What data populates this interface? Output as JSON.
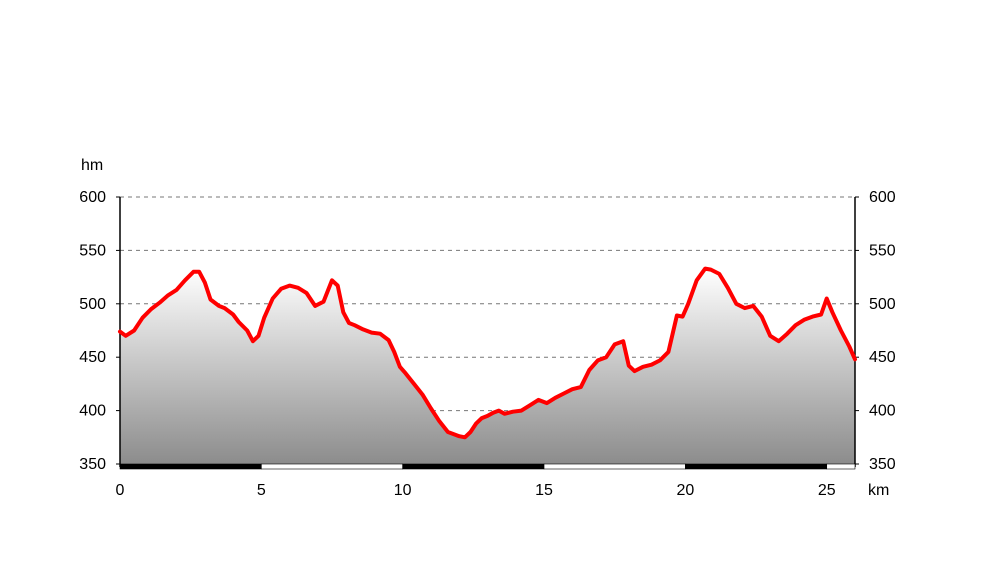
{
  "chart_data": {
    "type": "area",
    "title": "",
    "y_unit": "hm",
    "x_unit": "km",
    "xlim": [
      0,
      26
    ],
    "ylim": [
      350,
      600
    ],
    "x_ticks": [
      "0",
      "5",
      "10",
      "15",
      "20",
      "25"
    ],
    "y_ticks": [
      "350",
      "400",
      "450",
      "500",
      "550",
      "600"
    ],
    "grid": true,
    "line_color": "#ff0000",
    "fill_gradient": [
      "#ffffff",
      "#8c8c8c"
    ],
    "series": [
      {
        "x": [
          0,
          0.2,
          0.5,
          0.8,
          1.1,
          1.4,
          1.7,
          2.0,
          2.3,
          2.6,
          2.8,
          3.0,
          3.2,
          3.5,
          3.7,
          4.0,
          4.2,
          4.5,
          4.7,
          4.9,
          5.1,
          5.4,
          5.7,
          6.0,
          6.3,
          6.6,
          6.9,
          7.2,
          7.5,
          7.7,
          7.9,
          8.1,
          8.3,
          8.6,
          8.9,
          9.2,
          9.5,
          9.7,
          9.9,
          10.1,
          10.4,
          10.7,
          11.0,
          11.3,
          11.6,
          11.8,
          12.0,
          12.2,
          12.4,
          12.6,
          12.8,
          13.0,
          13.2,
          13.4,
          13.6,
          13.9,
          14.2,
          14.5,
          14.8,
          15.1,
          15.4,
          15.7,
          16.0,
          16.3,
          16.6,
          16.9,
          17.2,
          17.5,
          17.8,
          18.0,
          18.2,
          18.5,
          18.8,
          19.1,
          19.4,
          19.7,
          19.9,
          20.1,
          20.4,
          20.7,
          20.9,
          21.2,
          21.5,
          21.8,
          22.1,
          22.4,
          22.7,
          23.0,
          23.3,
          23.6,
          23.9,
          24.2,
          24.5,
          24.8,
          25.0,
          25.2,
          25.5,
          25.8,
          26.0
        ],
        "values": [
          474,
          470,
          475,
          487,
          495,
          501,
          508,
          513,
          522,
          530,
          530,
          520,
          504,
          498,
          496,
          490,
          483,
          475,
          465,
          470,
          487,
          505,
          514,
          517,
          515,
          510,
          498,
          502,
          522,
          517,
          492,
          482,
          480,
          476,
          473,
          472,
          466,
          455,
          441,
          435,
          425,
          415,
          402,
          390,
          380,
          378,
          376,
          375,
          380,
          388,
          393,
          395,
          398,
          400,
          397,
          399,
          400,
          405,
          410,
          407,
          412,
          416,
          420,
          422,
          438,
          447,
          450,
          462,
          465,
          442,
          437,
          441,
          443,
          447,
          455,
          489,
          488,
          500,
          522,
          533,
          532,
          528,
          515,
          500,
          496,
          498,
          488,
          470,
          465,
          472,
          480,
          485,
          488,
          490,
          505,
          492,
          475,
          460,
          448
        ]
      }
    ]
  }
}
